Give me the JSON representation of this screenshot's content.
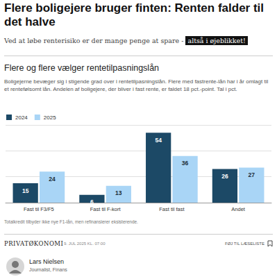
{
  "article": {
    "headline": "Flere boligejere bruger finten: Renten falder til det halve",
    "lede": "Ved at løbe renterisiko er der mange penge at spare -",
    "lede_highlight": "altså i øjeblikket!",
    "section": "PRIVATØKONOMI",
    "date": "9. JUL 2025 KL. 07:00",
    "action": "FØJ TIL LÆSELISTE",
    "author": {
      "name": "Lars Nielsen",
      "role": "Journalist, Finans"
    }
  },
  "chart_data": {
    "type": "bar",
    "title": "Flere og flere vælger rentetilpasningslån",
    "subtitle": "Boligejerne bevæger sig i stigende grad over i rentetilpasningslån. Flere med fastrente-lån har i år omlagt til et rentefølsomt lån. Andelen af boligejere, der bliver i fast rente, er faldet 18 pct.-point. Tal i pct.",
    "note": "Totalkredit tilbyder ikke nye F1-lån, men refinansierer eksisterende.",
    "categories": [
      "Fast til F3/F5",
      "Fast til F-kort",
      "Fast til fast",
      "Andet"
    ],
    "series": [
      {
        "name": "2024",
        "color": "#1c4966",
        "values": [
          15,
          6,
          54,
          26
        ]
      },
      {
        "name": "2025",
        "color": "#a9d5f6",
        "values": [
          24,
          13,
          36,
          27
        ]
      }
    ],
    "ylim": [
      0,
      60
    ],
    "yticks": [
      0,
      20,
      40,
      60
    ],
    "grid": true,
    "legend": "top-left",
    "data_labels": true,
    "tick_labels": "x"
  }
}
